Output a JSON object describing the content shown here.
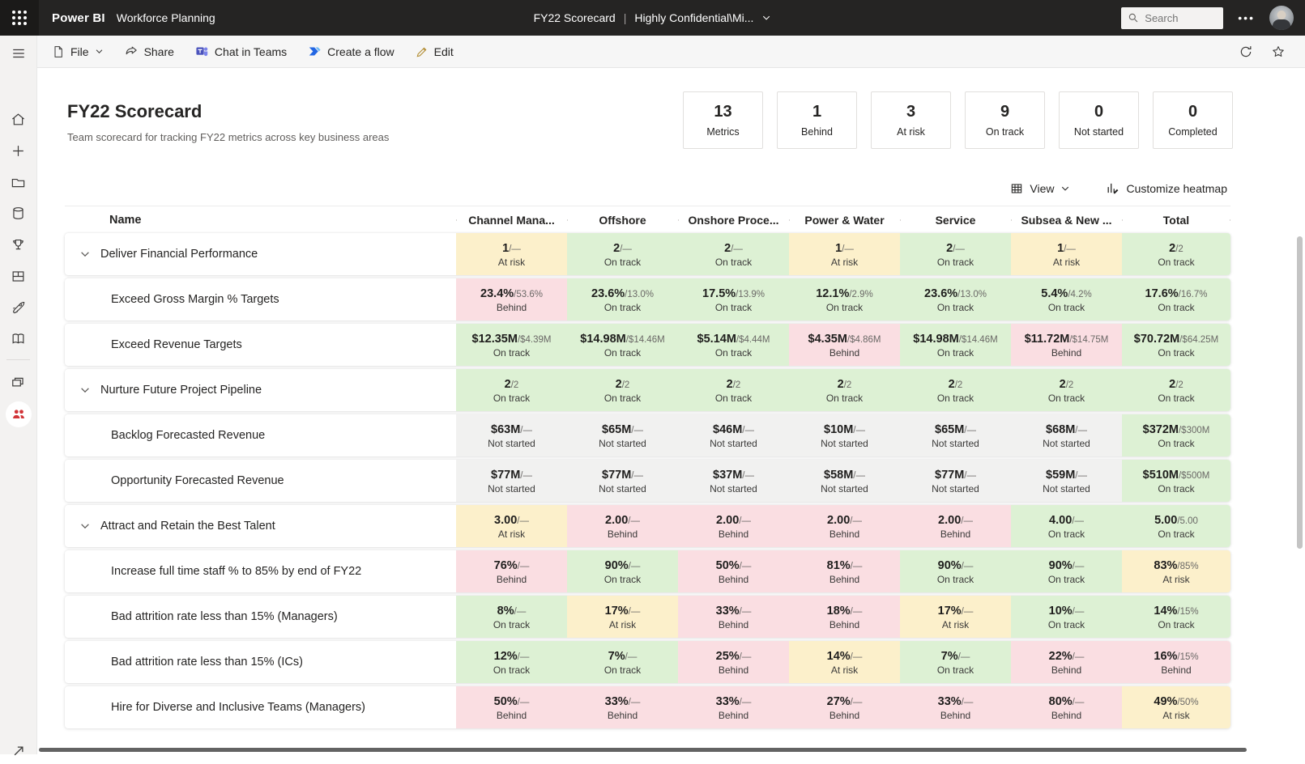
{
  "app_bar": {
    "brand": "Power BI",
    "app_name": "Workforce Planning",
    "doc_title": "FY22 Scorecard",
    "sensitivity_label": "Highly Confidential\\Mi...",
    "separator": "|",
    "more_label": "•••",
    "search": {
      "placeholder": "Search"
    }
  },
  "toolbar": {
    "file_label": "File",
    "share_label": "Share",
    "chat_label": "Chat in Teams",
    "flow_label": "Create a flow",
    "edit_label": "Edit"
  },
  "scorecard": {
    "title": "FY22 Scorecard",
    "subtitle": "Team scorecard for tracking FY22 metrics across key business areas"
  },
  "summary_cards": [
    {
      "value": "13",
      "label": "Metrics"
    },
    {
      "value": "1",
      "label": "Behind"
    },
    {
      "value": "3",
      "label": "At risk"
    },
    {
      "value": "9",
      "label": "On track"
    },
    {
      "value": "0",
      "label": "Not started"
    },
    {
      "value": "0",
      "label": "Completed"
    }
  ],
  "controls": {
    "view_label": "View",
    "customize_label": "Customize heatmap"
  },
  "sidebar": {
    "icons": [
      "hamburger-menu",
      "home",
      "create-plus",
      "browse-folder",
      "data-hub",
      "metrics-trophy",
      "apps-layout",
      "deployment-rocket",
      "learn-book",
      "workspaces-layers",
      "workspace-avatar-red",
      "expand-arrow"
    ]
  },
  "table": {
    "name_header": "Name",
    "columns": [
      "Channel Mana...",
      "Offshore",
      "Onshore Proce...",
      "Power & Water",
      "Service",
      "Subsea & New ...",
      "Total"
    ],
    "status_styles": {
      "On track": "#DDF1D4",
      "At risk": "#FCF0CB",
      "Behind": "#FADEE2",
      "Not started": "#F1F1F0"
    },
    "rows": [
      {
        "type": "goal",
        "name": "Deliver Financial Performance",
        "cells": [
          {
            "value": "1",
            "target": "—",
            "status": "At risk"
          },
          {
            "value": "2",
            "target": "—",
            "status": "On track"
          },
          {
            "value": "2",
            "target": "—",
            "status": "On track"
          },
          {
            "value": "1",
            "target": "—",
            "status": "At risk"
          },
          {
            "value": "2",
            "target": "—",
            "status": "On track"
          },
          {
            "value": "1",
            "target": "—",
            "status": "At risk"
          },
          {
            "value": "2",
            "target": "2",
            "status": "On track"
          }
        ]
      },
      {
        "type": "metric",
        "name": "Exceed Gross Margin % Targets",
        "cells": [
          {
            "value": "23.4%",
            "target": "53.6%",
            "status": "Behind"
          },
          {
            "value": "23.6%",
            "target": "13.0%",
            "status": "On track"
          },
          {
            "value": "17.5%",
            "target": "13.9%",
            "status": "On track"
          },
          {
            "value": "12.1%",
            "target": "2.9%",
            "status": "On track"
          },
          {
            "value": "23.6%",
            "target": "13.0%",
            "status": "On track"
          },
          {
            "value": "5.4%",
            "target": "4.2%",
            "status": "On track"
          },
          {
            "value": "17.6%",
            "target": "16.7%",
            "status": "On track"
          }
        ]
      },
      {
        "type": "metric",
        "name": "Exceed Revenue Targets",
        "cells": [
          {
            "value": "$12.35M",
            "target": "$4.39M",
            "status": "On track"
          },
          {
            "value": "$14.98M",
            "target": "$14.46M",
            "status": "On track"
          },
          {
            "value": "$5.14M",
            "target": "$4.44M",
            "status": "On track"
          },
          {
            "value": "$4.35M",
            "target": "$4.86M",
            "status": "Behind"
          },
          {
            "value": "$14.98M",
            "target": "$14.46M",
            "status": "On track"
          },
          {
            "value": "$11.72M",
            "target": "$14.75M",
            "status": "Behind"
          },
          {
            "value": "$70.72M",
            "target": "$64.25M",
            "status": "On track"
          }
        ]
      },
      {
        "type": "goal",
        "name": "Nurture Future Project Pipeline",
        "cells": [
          {
            "value": "2",
            "target": "2",
            "status": "On track"
          },
          {
            "value": "2",
            "target": "2",
            "status": "On track"
          },
          {
            "value": "2",
            "target": "2",
            "status": "On track"
          },
          {
            "value": "2",
            "target": "2",
            "status": "On track"
          },
          {
            "value": "2",
            "target": "2",
            "status": "On track"
          },
          {
            "value": "2",
            "target": "2",
            "status": "On track"
          },
          {
            "value": "2",
            "target": "2",
            "status": "On track"
          }
        ]
      },
      {
        "type": "metric",
        "name": "Backlog Forecasted Revenue",
        "cells": [
          {
            "value": "$63M",
            "target": "—",
            "status": "Not started"
          },
          {
            "value": "$65M",
            "target": "—",
            "status": "Not started"
          },
          {
            "value": "$46M",
            "target": "—",
            "status": "Not started"
          },
          {
            "value": "$10M",
            "target": "—",
            "status": "Not started"
          },
          {
            "value": "$65M",
            "target": "—",
            "status": "Not started"
          },
          {
            "value": "$68M",
            "target": "—",
            "status": "Not started"
          },
          {
            "value": "$372M",
            "target": "$300M",
            "status": "On track"
          }
        ]
      },
      {
        "type": "metric",
        "name": "Opportunity Forecasted Revenue",
        "cells": [
          {
            "value": "$77M",
            "target": "—",
            "status": "Not started"
          },
          {
            "value": "$77M",
            "target": "—",
            "status": "Not started"
          },
          {
            "value": "$37M",
            "target": "—",
            "status": "Not started"
          },
          {
            "value": "$58M",
            "target": "—",
            "status": "Not started"
          },
          {
            "value": "$77M",
            "target": "—",
            "status": "Not started"
          },
          {
            "value": "$59M",
            "target": "—",
            "status": "Not started"
          },
          {
            "value": "$510M",
            "target": "$500M",
            "status": "On track"
          }
        ]
      },
      {
        "type": "goal",
        "name": "Attract and Retain the Best Talent",
        "cells": [
          {
            "value": "3.00",
            "target": "—",
            "status": "At risk"
          },
          {
            "value": "2.00",
            "target": "—",
            "status": "Behind"
          },
          {
            "value": "2.00",
            "target": "—",
            "status": "Behind"
          },
          {
            "value": "2.00",
            "target": "—",
            "status": "Behind"
          },
          {
            "value": "2.00",
            "target": "—",
            "status": "Behind"
          },
          {
            "value": "4.00",
            "target": "—",
            "status": "On track"
          },
          {
            "value": "5.00",
            "target": "5.00",
            "status": "On track"
          }
        ]
      },
      {
        "type": "metric",
        "name": "Increase full time staff % to 85% by end of FY22",
        "cells": [
          {
            "value": "76%",
            "target": "—",
            "status": "Behind"
          },
          {
            "value": "90%",
            "target": "—",
            "status": "On track"
          },
          {
            "value": "50%",
            "target": "—",
            "status": "Behind"
          },
          {
            "value": "81%",
            "target": "—",
            "status": "Behind"
          },
          {
            "value": "90%",
            "target": "—",
            "status": "On track"
          },
          {
            "value": "90%",
            "target": "—",
            "status": "On track"
          },
          {
            "value": "83%",
            "target": "85%",
            "status": "At risk"
          }
        ]
      },
      {
        "type": "metric",
        "name": "Bad attrition rate less than 15% (Managers)",
        "cells": [
          {
            "value": "8%",
            "target": "—",
            "status": "On track"
          },
          {
            "value": "17%",
            "target": "—",
            "status": "At risk"
          },
          {
            "value": "33%",
            "target": "—",
            "status": "Behind"
          },
          {
            "value": "18%",
            "target": "—",
            "status": "Behind"
          },
          {
            "value": "17%",
            "target": "—",
            "status": "At risk"
          },
          {
            "value": "10%",
            "target": "—",
            "status": "On track"
          },
          {
            "value": "14%",
            "target": "15%",
            "status": "On track"
          }
        ]
      },
      {
        "type": "metric",
        "name": "Bad attrition rate less than 15% (ICs)",
        "cells": [
          {
            "value": "12%",
            "target": "—",
            "status": "On track"
          },
          {
            "value": "7%",
            "target": "—",
            "status": "On track"
          },
          {
            "value": "25%",
            "target": "—",
            "status": "Behind"
          },
          {
            "value": "14%",
            "target": "—",
            "status": "At risk"
          },
          {
            "value": "7%",
            "target": "—",
            "status": "On track"
          },
          {
            "value": "22%",
            "target": "—",
            "status": "Behind"
          },
          {
            "value": "16%",
            "target": "15%",
            "status": "Behind"
          }
        ]
      },
      {
        "type": "metric",
        "name": "Hire for Diverse and Inclusive Teams (Managers)",
        "cells": [
          {
            "value": "50%",
            "target": "—",
            "status": "Behind"
          },
          {
            "value": "33%",
            "target": "—",
            "status": "Behind"
          },
          {
            "value": "33%",
            "target": "—",
            "status": "Behind"
          },
          {
            "value": "27%",
            "target": "—",
            "status": "Behind"
          },
          {
            "value": "33%",
            "target": "—",
            "status": "Behind"
          },
          {
            "value": "80%",
            "target": "—",
            "status": "Behind"
          },
          {
            "value": "49%",
            "target": "50%",
            "status": "At risk"
          }
        ]
      }
    ]
  }
}
